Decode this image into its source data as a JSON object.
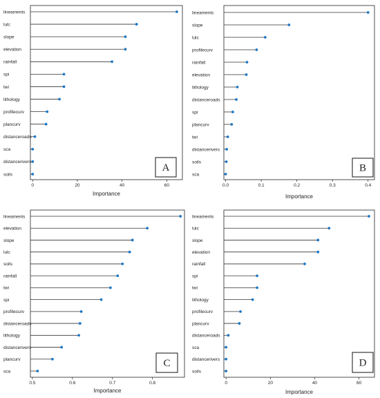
{
  "figure": {
    "xlabel": "Importance",
    "point_color": "#1f77c4",
    "stem_color": "#333333"
  },
  "chart_data": [
    {
      "type": "lollipop",
      "panel": "A",
      "xlabel": "Importance",
      "xlim": [
        -1,
        67
      ],
      "xticks": [
        0,
        20,
        40,
        60
      ],
      "categories": [
        "lineaments",
        "lulc",
        "slope",
        "elevation",
        "rainfall",
        "spi",
        "twi",
        "lithology",
        "profilecurv",
        "plancurv",
        "distanceroads",
        "sca",
        "distancerivers",
        "soils"
      ],
      "values": [
        64.5,
        46.5,
        41.5,
        41.5,
        35.5,
        14,
        14,
        12,
        6.5,
        6,
        1,
        0,
        0,
        0
      ]
    },
    {
      "type": "lollipop",
      "panel": "B",
      "xlabel": "Importance",
      "xlim": [
        -0.005,
        0.418
      ],
      "xticks": [
        0.0,
        0.1,
        0.2,
        0.3,
        0.4
      ],
      "xtick_labels": [
        "0.0",
        "0.1",
        "0.2",
        "0.3",
        "0.4"
      ],
      "categories": [
        "lineaments",
        "slope",
        "lulc",
        "profilecurv",
        "rainfall",
        "elevation",
        "lithology",
        "distanceroads",
        "spi",
        "plancurv",
        "twi",
        "distancerivers",
        "soils",
        "sca"
      ],
      "values": [
        0.4,
        0.178,
        0.111,
        0.087,
        0.06,
        0.058,
        0.033,
        0.03,
        0.02,
        0.017,
        0.006,
        0.003,
        0.002,
        0.0
      ]
    },
    {
      "type": "lollipop",
      "panel": "C",
      "xlabel": "Importance",
      "xlim": [
        0.495,
        0.88
      ],
      "xticks": [
        0.5,
        0.6,
        0.7,
        0.8
      ],
      "xtick_labels": [
        "0.5",
        "0.6",
        "0.7",
        "0.8"
      ],
      "categories": [
        "lineaments",
        "elevation",
        "slope",
        "lulc",
        "soils",
        "rainfall",
        "twi",
        "spi",
        "profilecurv",
        "distanceroads",
        "lithology",
        "distancerivers",
        "plancurv",
        "sca"
      ],
      "values": [
        0.87,
        0.787,
        0.75,
        0.743,
        0.725,
        0.713,
        0.695,
        0.672,
        0.622,
        0.619,
        0.616,
        0.573,
        0.55,
        0.513
      ]
    },
    {
      "type": "lollipop",
      "panel": "D",
      "xlabel": "Importance",
      "xlim": [
        -1,
        67
      ],
      "xticks": [
        0,
        20,
        40,
        60
      ],
      "categories": [
        "lineaments",
        "lulc",
        "slope",
        "elevation",
        "rainfall",
        "spi",
        "twi",
        "lithology",
        "profilecurv",
        "plancurv",
        "distanceroads",
        "sca",
        "distancerivers",
        "soils"
      ],
      "values": [
        64.5,
        46.5,
        41.5,
        41.5,
        35.5,
        14,
        14,
        12,
        6.5,
        6,
        1,
        0,
        0,
        0
      ]
    }
  ]
}
